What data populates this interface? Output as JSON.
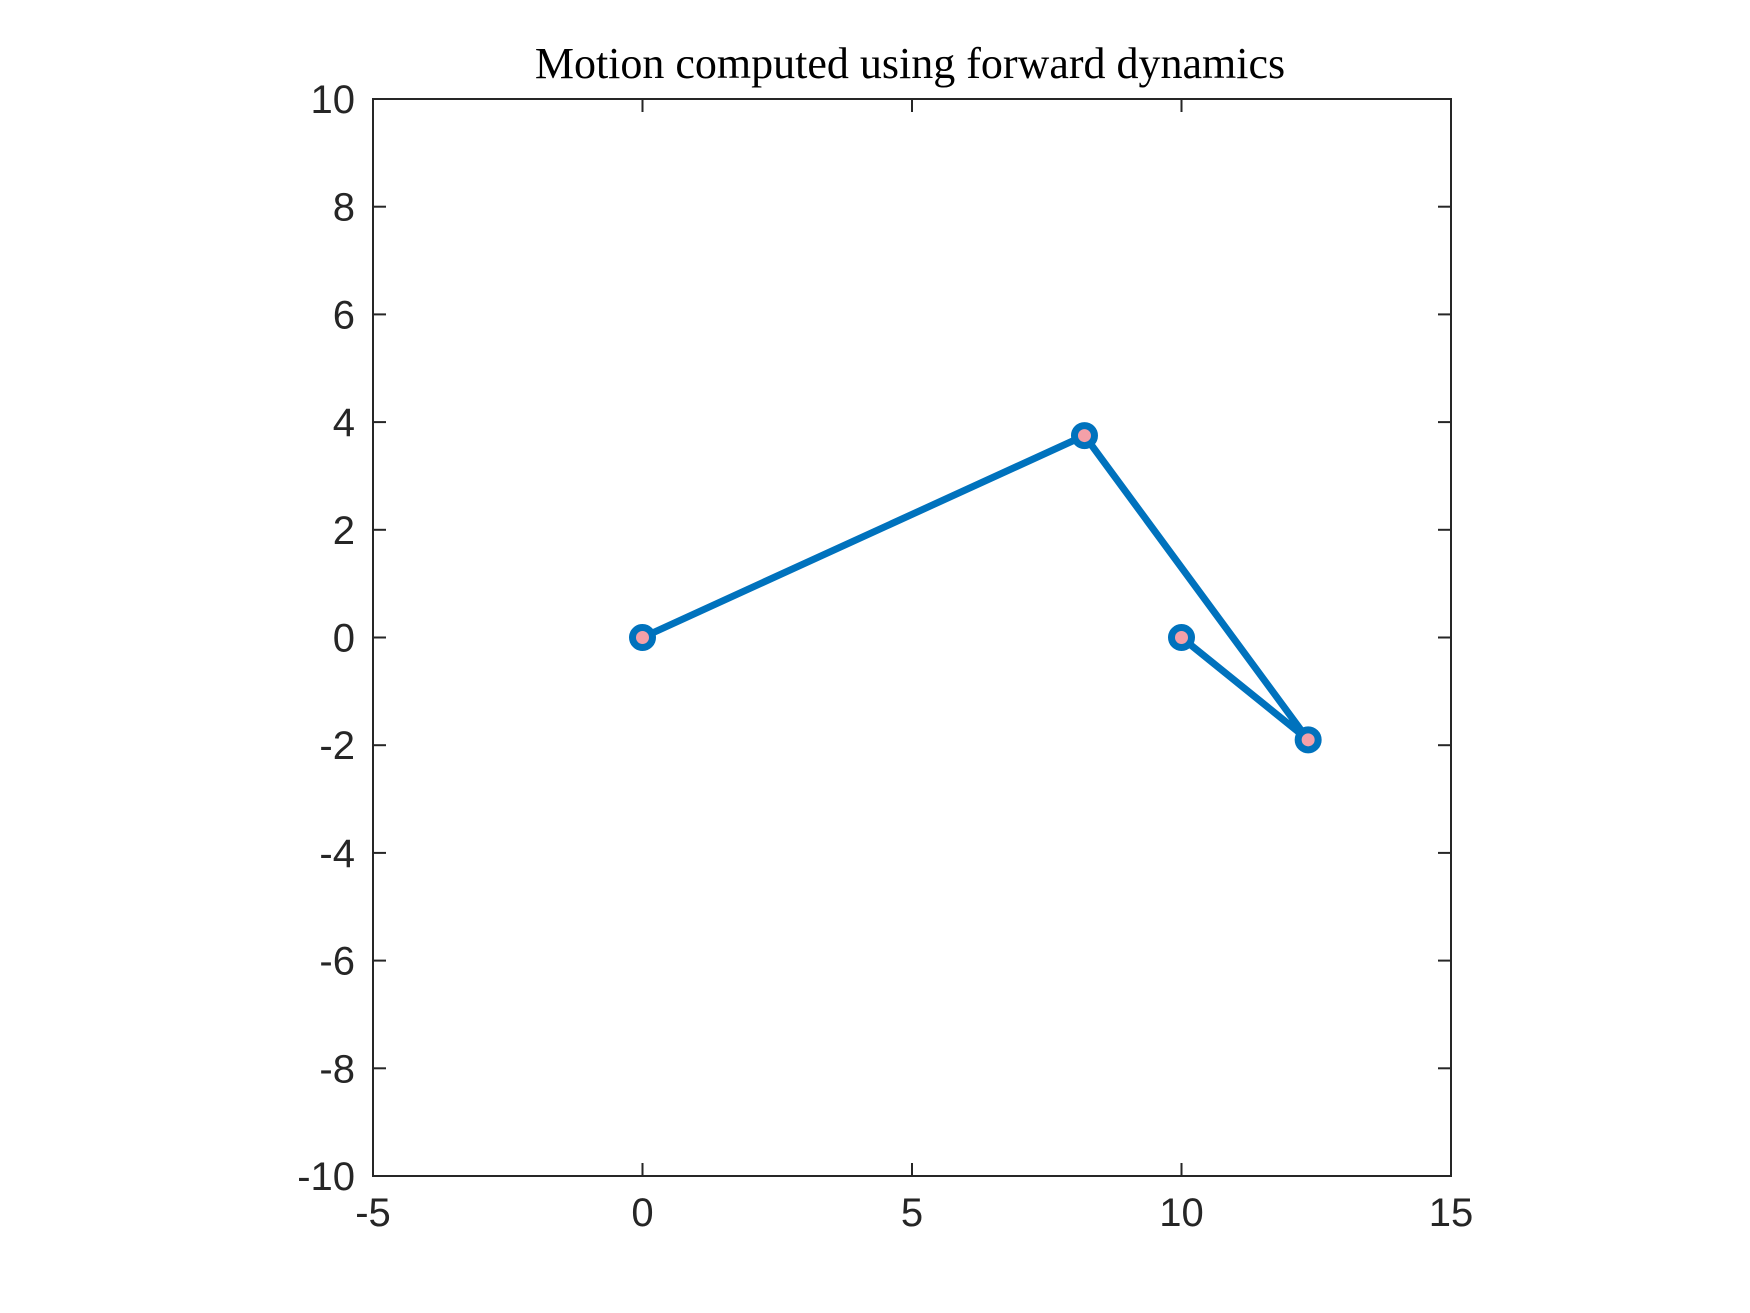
{
  "chart_data": {
    "type": "line",
    "title": "Motion computed using forward dynamics",
    "xlabel": "",
    "ylabel": "",
    "xlim": [
      -5,
      15
    ],
    "ylim": [
      -10,
      10
    ],
    "xticks": [
      -5,
      0,
      5,
      10,
      15
    ],
    "yticks": [
      10,
      8,
      6,
      4,
      2,
      0,
      -2,
      -4,
      -6,
      -8,
      -10
    ],
    "grid": false,
    "series": [
      {
        "x": [
          0,
          8.2,
          12.35,
          10
        ],
        "y": [
          0,
          3.75,
          -1.9,
          0
        ],
        "color": "#0072BD",
        "marker": "o",
        "marker_face_color": "#F4A0A8"
      }
    ]
  }
}
